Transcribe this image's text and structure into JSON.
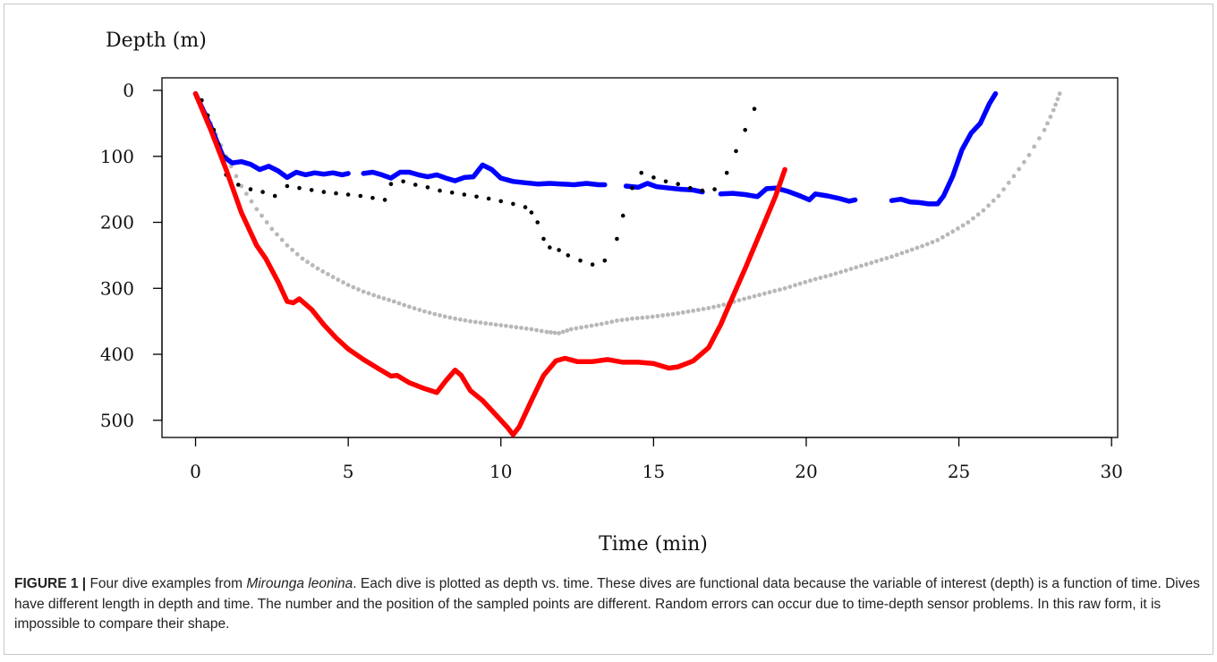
{
  "caption": {
    "label": "FIGURE 1 |",
    "pre": " Four dive examples from ",
    "species": "Mirounga leonina",
    "post": ". Each dive is plotted as depth vs. time. These dives are functional data because the variable of interest (depth) is a function of time. Dives have different length in depth and time. The number and the position of the sampled points are different. Random errors can occur due to time-depth sensor problems. In this raw form, it is impossible to compare their shape."
  },
  "chart_data": {
    "type": "line",
    "title": "",
    "xlabel": "Time (min)",
    "ylabel": "Depth (m)",
    "xlim": [
      -1.1,
      30.2
    ],
    "ylim": [
      0,
      545
    ],
    "y_reversed": true,
    "xticks": [
      0,
      5,
      10,
      15,
      20,
      25,
      30
    ],
    "yticks": [
      0,
      100,
      200,
      300,
      400,
      500
    ],
    "grid": false,
    "legend": "none",
    "series": [
      {
        "color": "#ff0000",
        "style": "line",
        "segments": [
          [
            [
              0,
              5
            ],
            [
              0.5,
              60
            ],
            [
              1,
              120
            ],
            [
              1.5,
              185
            ],
            [
              2,
              235
            ],
            [
              2.3,
              255
            ],
            [
              2.7,
              290
            ],
            [
              3,
              320
            ],
            [
              3.2,
              322
            ],
            [
              3.4,
              316
            ],
            [
              3.8,
              332
            ],
            [
              4.2,
              355
            ],
            [
              4.6,
              375
            ],
            [
              5,
              392
            ],
            [
              5.5,
              408
            ],
            [
              6,
              422
            ],
            [
              6.4,
              433
            ],
            [
              6.6,
              432
            ],
            [
              7,
              443
            ],
            [
              7.5,
              452
            ],
            [
              7.9,
              458
            ],
            [
              8.2,
              440
            ],
            [
              8.5,
              424
            ],
            [
              8.7,
              432
            ],
            [
              9,
              455
            ],
            [
              9.4,
              470
            ],
            [
              9.8,
              490
            ],
            [
              10.2,
              510
            ],
            [
              10.4,
              522
            ],
            [
              10.6,
              510
            ],
            [
              11,
              470
            ],
            [
              11.4,
              432
            ],
            [
              11.8,
              410
            ],
            [
              12.1,
              406
            ],
            [
              12.5,
              411
            ],
            [
              13,
              411
            ],
            [
              13.5,
              408
            ],
            [
              14,
              412
            ],
            [
              14.5,
              412
            ],
            [
              15,
              414
            ],
            [
              15.5,
              421
            ],
            [
              15.8,
              419
            ],
            [
              16.3,
              410
            ],
            [
              16.8,
              390
            ],
            [
              17.2,
              355
            ],
            [
              17.6,
              312
            ],
            [
              18,
              270
            ],
            [
              18.5,
              215
            ],
            [
              19,
              160
            ],
            [
              19.3,
              120
            ]
          ]
        ]
      },
      {
        "color": "#0000ff",
        "style": "line",
        "segments": [
          [
            [
              0,
              5
            ],
            [
              0.5,
              55
            ],
            [
              0.9,
              100
            ],
            [
              1.2,
              110
            ],
            [
              1.5,
              108
            ],
            [
              1.8,
              112
            ],
            [
              2.1,
              120
            ],
            [
              2.4,
              115
            ],
            [
              2.7,
              122
            ],
            [
              3,
              132
            ],
            [
              3.3,
              124
            ],
            [
              3.6,
              128
            ],
            [
              3.9,
              125
            ],
            [
              4.2,
              127
            ],
            [
              4.5,
              125
            ],
            [
              4.8,
              128
            ],
            [
              5,
              126
            ]
          ],
          [
            [
              5.5,
              126
            ],
            [
              5.8,
              124
            ],
            [
              6.1,
              128
            ],
            [
              6.4,
              133
            ],
            [
              6.7,
              124
            ],
            [
              7,
              124
            ],
            [
              7.3,
              128
            ],
            [
              7.6,
              131
            ],
            [
              7.9,
              128
            ],
            [
              8.2,
              133
            ],
            [
              8.5,
              137
            ],
            [
              8.8,
              132
            ],
            [
              9.1,
              131
            ],
            [
              9.4,
              113
            ],
            [
              9.7,
              120
            ],
            [
              10,
              133
            ],
            [
              10.4,
              138
            ],
            [
              10.8,
              140
            ],
            [
              11.2,
              142
            ],
            [
              11.6,
              141
            ],
            [
              12,
              142
            ],
            [
              12.4,
              143
            ],
            [
              12.8,
              141
            ],
            [
              13.2,
              143
            ],
            [
              13.4,
              143
            ]
          ],
          [
            [
              14.1,
              145
            ],
            [
              14.5,
              147
            ],
            [
              14.8,
              141
            ],
            [
              15.1,
              146
            ],
            [
              15.5,
              148
            ],
            [
              15.9,
              150
            ],
            [
              16.3,
              151
            ],
            [
              16.6,
              154
            ]
          ],
          [
            [
              17.2,
              157
            ],
            [
              17.6,
              156
            ],
            [
              18,
              158
            ],
            [
              18.4,
              161
            ],
            [
              18.7,
              149
            ],
            [
              19,
              148
            ],
            [
              19.4,
              153
            ],
            [
              19.8,
              160
            ],
            [
              20.1,
              166
            ],
            [
              20.3,
              157
            ],
            [
              20.7,
              160
            ],
            [
              21.1,
              164
            ],
            [
              21.4,
              168
            ],
            [
              21.6,
              166
            ]
          ],
          [
            [
              22.8,
              167
            ],
            [
              23.1,
              165
            ],
            [
              23.4,
              169
            ],
            [
              23.7,
              170
            ],
            [
              24,
              172
            ],
            [
              24.3,
              172
            ],
            [
              24.5,
              160
            ],
            [
              24.8,
              130
            ],
            [
              25.1,
              90
            ],
            [
              25.4,
              65
            ],
            [
              25.7,
              50
            ],
            [
              26,
              20
            ],
            [
              26.2,
              5
            ]
          ]
        ]
      },
      {
        "color": "#000000",
        "style": "dots",
        "points": [
          [
            0.2,
            15
          ],
          [
            0.4,
            38
          ],
          [
            0.6,
            60
          ],
          [
            0.75,
            82
          ],
          [
            0.9,
            100
          ],
          [
            1.0,
            128
          ],
          [
            1.4,
            143
          ],
          [
            1.8,
            150
          ],
          [
            2.2,
            154
          ],
          [
            2.6,
            160
          ],
          [
            3.0,
            145
          ],
          [
            3.4,
            148
          ],
          [
            3.8,
            151
          ],
          [
            4.2,
            154
          ],
          [
            4.6,
            156
          ],
          [
            5.0,
            158
          ],
          [
            5.4,
            160
          ],
          [
            5.8,
            163
          ],
          [
            6.2,
            166
          ],
          [
            6.4,
            142
          ],
          [
            6.8,
            138
          ],
          [
            7.2,
            143
          ],
          [
            7.6,
            147
          ],
          [
            8.0,
            152
          ],
          [
            8.4,
            155
          ],
          [
            8.8,
            158
          ],
          [
            9.2,
            161
          ],
          [
            9.6,
            164
          ],
          [
            10.0,
            168
          ],
          [
            10.4,
            172
          ],
          [
            10.8,
            177
          ],
          [
            11.0,
            185
          ],
          [
            11.2,
            200
          ],
          [
            11.4,
            225
          ],
          [
            11.6,
            238
          ],
          [
            11.9,
            242
          ],
          [
            12.2,
            250
          ],
          [
            12.6,
            258
          ],
          [
            13.0,
            264
          ],
          [
            13.4,
            258
          ],
          [
            13.8,
            225
          ],
          [
            14.0,
            190
          ],
          [
            14.3,
            148
          ],
          [
            14.6,
            125
          ],
          [
            15.0,
            132
          ],
          [
            15.4,
            138
          ],
          [
            15.8,
            142
          ],
          [
            16.2,
            148
          ],
          [
            16.6,
            152
          ],
          [
            17.0,
            150
          ],
          [
            17.4,
            125
          ],
          [
            17.7,
            92
          ],
          [
            18.0,
            60
          ],
          [
            18.3,
            28
          ]
        ]
      },
      {
        "color": "#b8b8b8",
        "style": "dots",
        "points": [
          [
            0,
            5
          ],
          [
            0.5,
            50
          ],
          [
            1,
            100
          ],
          [
            1.5,
            145
          ],
          [
            2,
            180
          ],
          [
            2.5,
            210
          ],
          [
            3,
            235
          ],
          [
            3.5,
            255
          ],
          [
            4,
            270
          ],
          [
            4.5,
            283
          ],
          [
            5,
            295
          ],
          [
            5.5,
            305
          ],
          [
            6,
            313
          ],
          [
            6.5,
            320
          ],
          [
            7,
            328
          ],
          [
            7.5,
            335
          ],
          [
            8,
            341
          ],
          [
            8.5,
            346
          ],
          [
            9,
            350
          ],
          [
            9.5,
            353
          ],
          [
            10,
            356
          ],
          [
            10.5,
            359
          ],
          [
            11,
            362
          ],
          [
            11.5,
            366
          ],
          [
            11.9,
            368
          ],
          [
            12.3,
            362
          ],
          [
            12.8,
            358
          ],
          [
            13.3,
            354
          ],
          [
            13.8,
            349
          ],
          [
            14.3,
            346
          ],
          [
            14.8,
            344
          ],
          [
            15.3,
            341
          ],
          [
            15.8,
            338
          ],
          [
            16.3,
            334
          ],
          [
            16.8,
            330
          ],
          [
            17.3,
            325
          ],
          [
            17.8,
            318
          ],
          [
            18.3,
            312
          ],
          [
            18.8,
            306
          ],
          [
            19.3,
            300
          ],
          [
            19.8,
            293
          ],
          [
            20.3,
            286
          ],
          [
            20.8,
            280
          ],
          [
            21.3,
            273
          ],
          [
            21.8,
            266
          ],
          [
            22.3,
            259
          ],
          [
            22.8,
            252
          ],
          [
            23.3,
            244
          ],
          [
            23.8,
            236
          ],
          [
            24.3,
            227
          ],
          [
            24.8,
            214
          ],
          [
            25.3,
            200
          ],
          [
            25.8,
            182
          ],
          [
            26.3,
            160
          ],
          [
            26.8,
            130
          ],
          [
            27.3,
            98
          ],
          [
            27.8,
            60
          ],
          [
            28.1,
            30
          ],
          [
            28.3,
            5
          ]
        ]
      }
    ]
  }
}
